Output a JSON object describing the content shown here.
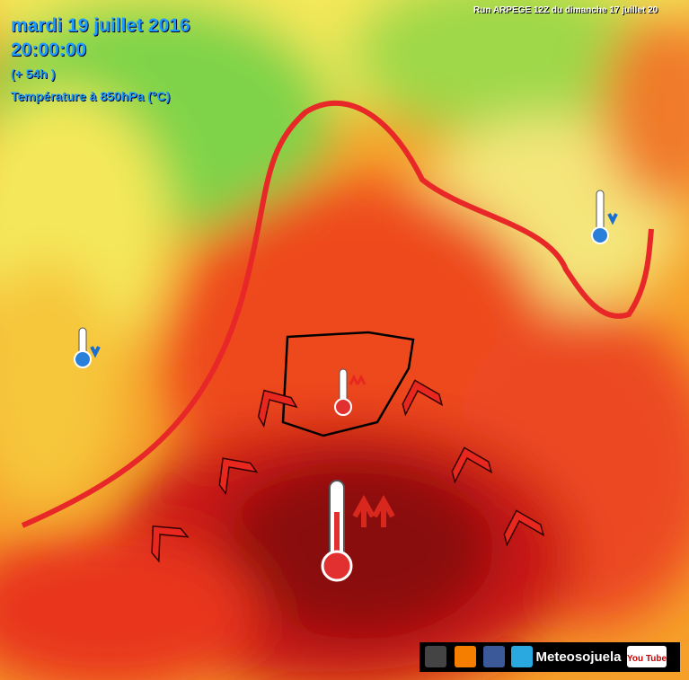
{
  "header": {
    "date": "mardi 19 juillet 2016",
    "time": "20:00:00",
    "lead": "(+ 54h )",
    "field": "Température à 850hPa (°C)",
    "run": "Run ARPEGE 12Z du dimanche 17 juillet 20"
  },
  "footer": {
    "brand": "Meteosojuela",
    "youtube": "You Tube"
  }
}
